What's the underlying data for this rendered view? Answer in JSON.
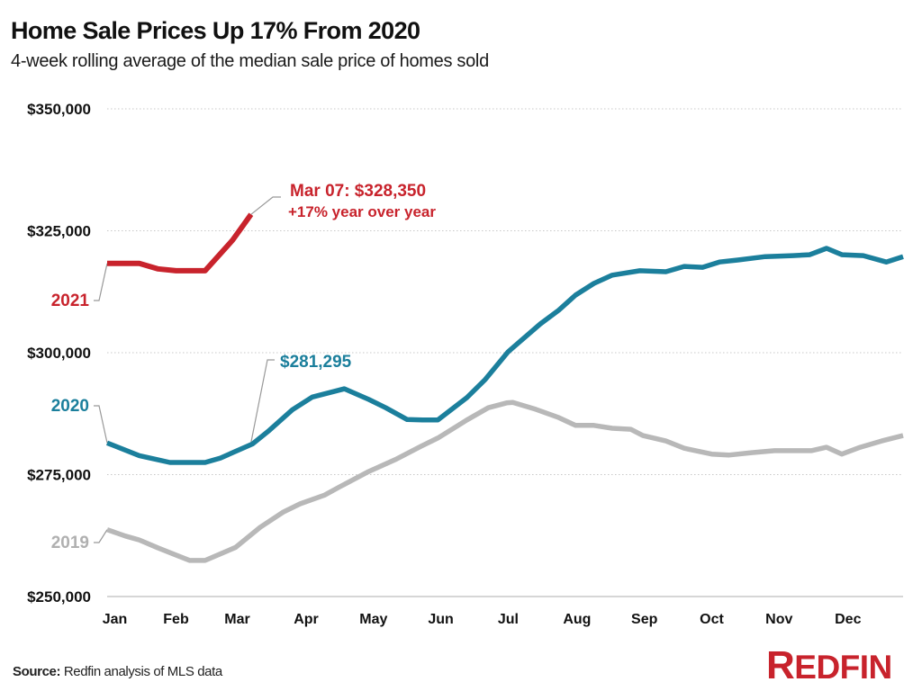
{
  "header": {
    "title": "Home Sale Prices Up 17% From 2020",
    "subtitle": "4-week rolling average of the median sale price of homes sold"
  },
  "footer": {
    "source_label": "Source:",
    "source_text": " Redfin analysis of MLS data",
    "logo_first": "R",
    "logo_rest": "EDFIN"
  },
  "colors": {
    "series_2021": "#c8232c",
    "series_2020": "#1b7f9c",
    "series_2019": "#b8b8b8",
    "label_2019": "#b0b0b0",
    "grid": "#c8c8c8",
    "leader": "#999999"
  },
  "chart_data": {
    "type": "line",
    "title": "Home Sale Prices Up 17% From 2020",
    "subtitle": "4-week rolling average of the median sale price of homes sold",
    "xlabel": "",
    "ylabel": "",
    "x_unit": "week of year",
    "xlim": [
      0,
      52
    ],
    "ylim": [
      250000,
      350000
    ],
    "yticks": [
      250000,
      275000,
      300000,
      325000,
      350000
    ],
    "ytick_labels": [
      "$250,000",
      "$275,000",
      "$300,000",
      "$325,000",
      "$350,000"
    ],
    "xticks": [
      0.5,
      4.5,
      8.5,
      13,
      17.4,
      21.8,
      26.2,
      30.7,
      35.1,
      39.5,
      43.9,
      48.4
    ],
    "xtick_labels": [
      "Jan",
      "Feb",
      "Mar",
      "Apr",
      "May",
      "Jun",
      "Jul",
      "Aug",
      "Sep",
      "Oct",
      "Nov",
      "Dec"
    ],
    "grid": true,
    "legend": "inline-labels-left",
    "series": [
      {
        "name": "2021",
        "label": "2021",
        "x": [
          0,
          2.1,
          3.3,
          4.5,
          6.4,
          8.2,
          9.4
        ],
        "values": [
          318300,
          318300,
          317200,
          316800,
          316800,
          323100,
          328350
        ]
      },
      {
        "name": "2020",
        "label": "2020",
        "x": [
          0,
          2.1,
          4.1,
          6.4,
          7.4,
          9.5,
          10.6,
          12.1,
          13.4,
          15.5,
          17.1,
          18.2,
          19.6,
          20.6,
          21.6,
          23.5,
          24.7,
          26.2,
          28.3,
          29.5,
          30.6,
          31.8,
          33,
          34.8,
          36.5,
          37.7,
          38.9,
          40,
          41.2,
          43,
          44.8,
          45.9,
          47,
          48,
          49.4,
          50.9,
          52
        ],
        "values": [
          281500,
          278900,
          277500,
          277500,
          278400,
          281295,
          284100,
          288300,
          290900,
          292600,
          290400,
          288700,
          286300,
          286200,
          286200,
          290800,
          294500,
          300200,
          305900,
          308700,
          311800,
          314200,
          315900,
          316800,
          316600,
          317700,
          317500,
          318600,
          319000,
          319700,
          319900,
          320100,
          321400,
          320100,
          319900,
          318600,
          319700
        ]
      },
      {
        "name": "2019",
        "label": "2019",
        "x": [
          0,
          1.2,
          2.1,
          3.3,
          4.5,
          5.4,
          6.4,
          8.4,
          10,
          11.5,
          12.6,
          14.2,
          15.2,
          17,
          18.9,
          20.5,
          21.6,
          23.5,
          24.9,
          26.1,
          26.5,
          28,
          29.5,
          30.6,
          31.8,
          33,
          34.2,
          35,
          36.5,
          37.7,
          39.5,
          40.6,
          42.1,
          43.6,
          46,
          47,
          48,
          49.2,
          50.6,
          52
        ],
        "values": [
          263700,
          262400,
          261600,
          260000,
          258500,
          257400,
          257400,
          260100,
          264200,
          267300,
          269000,
          270800,
          272500,
          275500,
          278200,
          280800,
          282500,
          286200,
          288700,
          289700,
          289800,
          288400,
          286700,
          285100,
          285100,
          284500,
          284300,
          283000,
          281900,
          280400,
          279200,
          279000,
          279500,
          279900,
          279900,
          280600,
          279200,
          280600,
          281900,
          283000
        ]
      }
    ],
    "annotations": [
      {
        "series": "2021",
        "text": "Mar 07: $328,350",
        "subtext": "+17% year over year",
        "x": 9.4,
        "value": 328350
      },
      {
        "series": "2020",
        "text": "$281,295",
        "x": 9.5,
        "value": 281295
      }
    ]
  }
}
